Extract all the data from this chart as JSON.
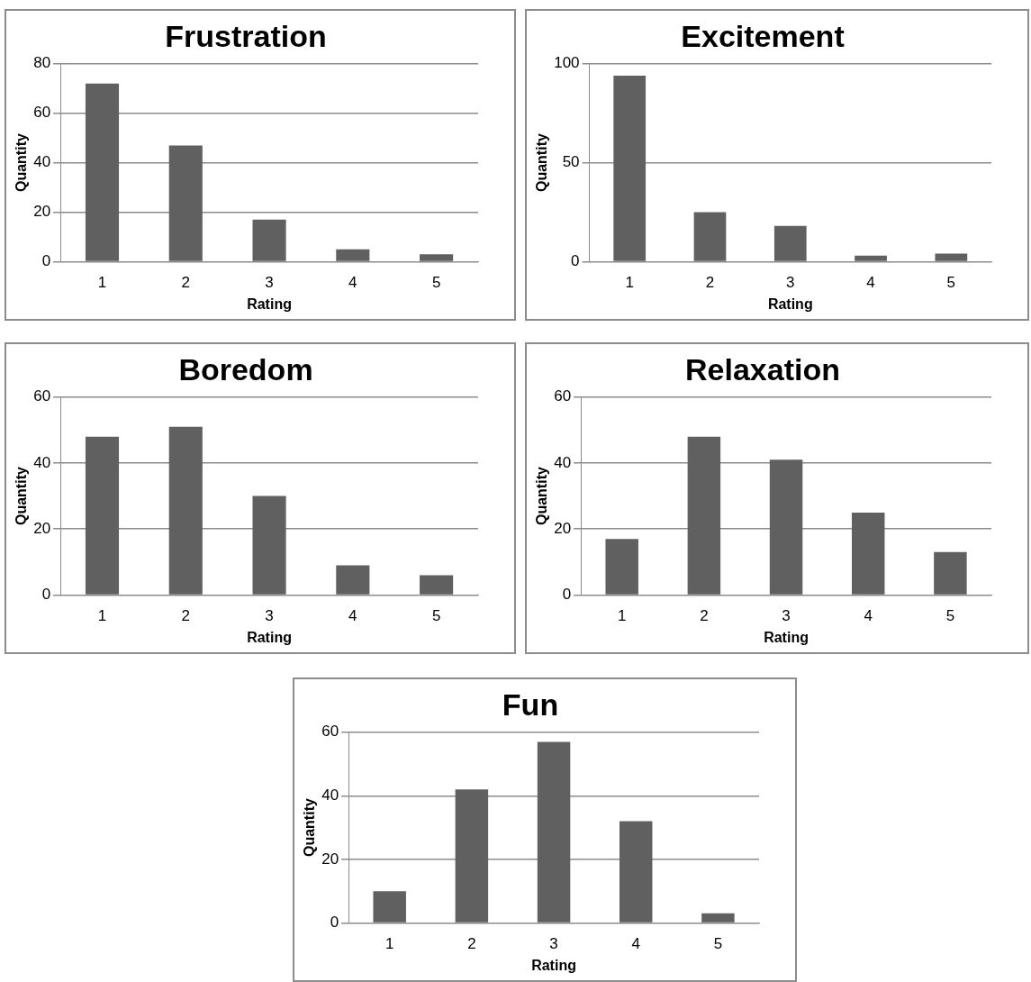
{
  "chart_data": [
    {
      "type": "bar",
      "title": "Frustration",
      "xlabel": "Rating",
      "ylabel": "Quantity",
      "categories": [
        "1",
        "2",
        "3",
        "4",
        "5"
      ],
      "values": [
        72,
        47,
        17,
        5,
        3
      ],
      "color": "#606060",
      "ylim": [
        0,
        80
      ],
      "yticks": [
        0,
        20,
        40,
        60,
        80
      ],
      "grid": "y"
    },
    {
      "type": "bar",
      "title": "Excitement",
      "xlabel": "Rating",
      "ylabel": "Quantity",
      "categories": [
        "1",
        "2",
        "3",
        "4",
        "5"
      ],
      "values": [
        94,
        25,
        18,
        3,
        4
      ],
      "color": "#606060",
      "ylim": [
        0,
        100
      ],
      "yticks": [
        0,
        50,
        100
      ],
      "grid": "y"
    },
    {
      "type": "bar",
      "title": "Boredom",
      "xlabel": "Rating",
      "ylabel": "Quantity",
      "categories": [
        "1",
        "2",
        "3",
        "4",
        "5"
      ],
      "values": [
        48,
        51,
        30,
        9,
        6
      ],
      "color": "#606060",
      "ylim": [
        0,
        60
      ],
      "yticks": [
        0,
        20,
        40,
        60
      ],
      "grid": "y"
    },
    {
      "type": "bar",
      "title": "Relaxation",
      "xlabel": "Rating",
      "ylabel": "Quantity",
      "categories": [
        "1",
        "2",
        "3",
        "4",
        "5"
      ],
      "values": [
        17,
        48,
        41,
        25,
        13
      ],
      "color": "#606060",
      "ylim": [
        0,
        60
      ],
      "yticks": [
        0,
        20,
        40,
        60
      ],
      "grid": "y"
    },
    {
      "type": "bar",
      "title": "Fun",
      "xlabel": "Rating",
      "ylabel": "Quantity",
      "categories": [
        "1",
        "2",
        "3",
        "4",
        "5"
      ],
      "values": [
        10,
        42,
        57,
        32,
        3
      ],
      "color": "#606060",
      "ylim": [
        0,
        60
      ],
      "yticks": [
        0,
        20,
        40,
        60
      ],
      "grid": "y"
    }
  ]
}
